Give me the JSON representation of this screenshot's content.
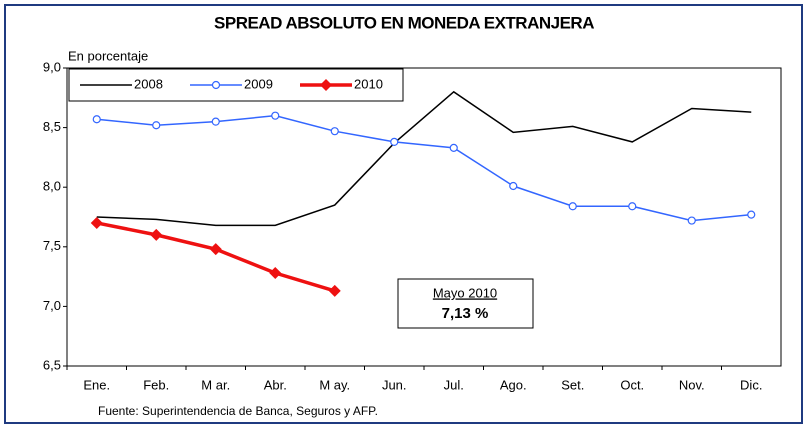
{
  "chart_data": {
    "type": "line",
    "title": "SPREAD ABSOLUTO EN MONEDA EXTRANJERA",
    "y_label": "En porcentaje",
    "source": "Fuente: Superintendencia de Banca, Seguros y AFP.",
    "categories": [
      "Ene.",
      "Feb.",
      "M ar.",
      "Abr.",
      "M ay.",
      "Jun.",
      "Jul.",
      "Ago.",
      "Set.",
      "Oct.",
      "Nov.",
      "Dic."
    ],
    "series": [
      {
        "name": "2008",
        "color": "#000000",
        "width": 1.5,
        "values": [
          7.75,
          7.73,
          7.68,
          7.68,
          7.85,
          8.37,
          8.8,
          8.46,
          8.51,
          8.38,
          8.66,
          8.63
        ]
      },
      {
        "name": "2009",
        "color": "#3366ff",
        "width": 1.5,
        "marker": "circle",
        "values": [
          8.57,
          8.52,
          8.55,
          8.6,
          8.47,
          8.38,
          8.33,
          8.01,
          7.84,
          7.84,
          7.72,
          7.77
        ]
      },
      {
        "name": "2010",
        "color": "#ee1111",
        "width": 3.5,
        "marker": "diamond",
        "values": [
          7.7,
          7.6,
          7.48,
          7.28,
          7.13,
          null,
          null,
          null,
          null,
          null,
          null,
          null
        ]
      }
    ],
    "ylim": [
      6.5,
      9.0
    ],
    "yticks": [
      {
        "value": 6.5,
        "label": "6,5"
      },
      {
        "value": 7.0,
        "label": "7,0"
      },
      {
        "value": 7.5,
        "label": "7,5"
      },
      {
        "value": 8.0,
        "label": "8,0"
      },
      {
        "value": 8.5,
        "label": "8,5"
      },
      {
        "value": 9.0,
        "label": "9,0"
      }
    ],
    "legend": "upper left",
    "annotation": {
      "title": "Mayo 2010",
      "text": "7,13 %"
    }
  }
}
